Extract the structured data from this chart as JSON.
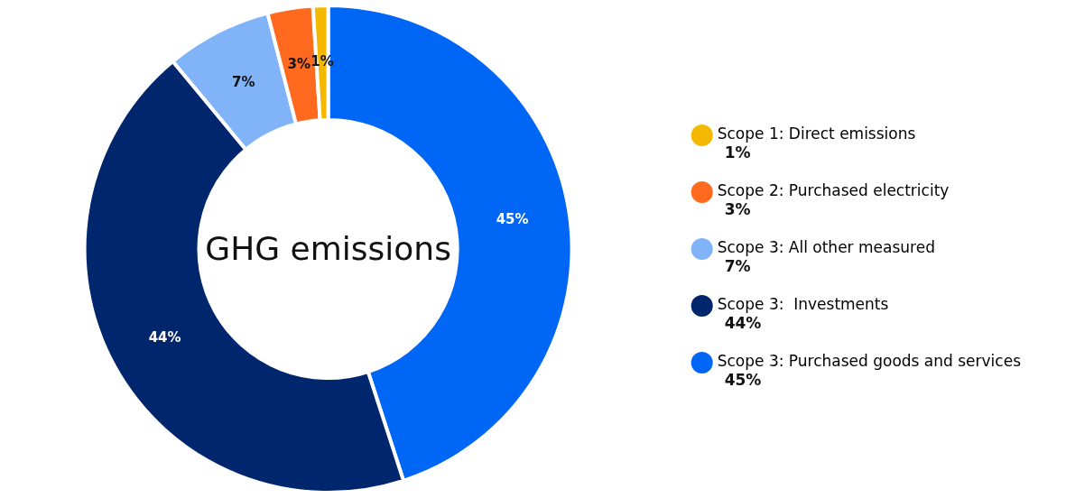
{
  "chart_data": {
    "type": "donut",
    "title": "GHG emissions",
    "categories": [
      "Scope 3: Purchased goods and services",
      "Scope 3:  Investments",
      "Scope 3: All other measured",
      "Scope 2: Purchased electricity",
      "Scope 1: Direct emissions"
    ],
    "values": [
      45,
      44,
      7,
      3,
      1
    ],
    "colors": [
      "#0066f5",
      "#00266e",
      "#80b3f8",
      "#ff6a1f",
      "#f5b800"
    ],
    "value_labels": [
      "45%",
      "44%",
      "7%",
      "3%",
      "1%"
    ],
    "legend": "right"
  }
}
